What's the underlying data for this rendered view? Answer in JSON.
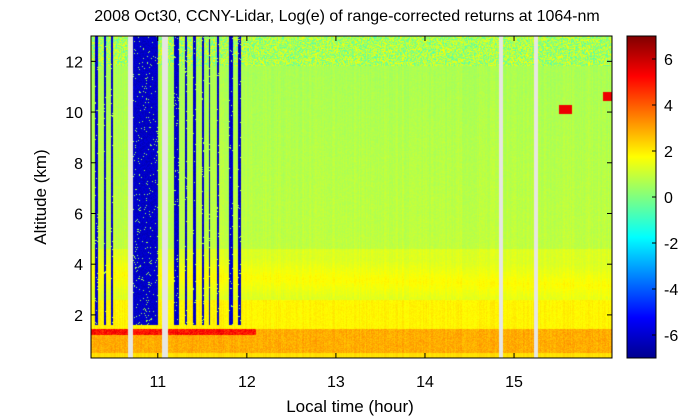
{
  "chart_data": {
    "type": "heatmap",
    "title": "2008 Oct30, CCNY-Lidar, Log(e) of range-corrected returns at 1064-nm",
    "xlabel": "Local time (hour)",
    "ylabel": "Altitude (km)",
    "xlim": [
      10.25,
      16.1
    ],
    "ylim": [
      0.3,
      13
    ],
    "x_ticks": [
      11,
      12,
      13,
      14,
      15
    ],
    "x_tick_labels": [
      "11",
      "12",
      "13",
      "14",
      "15"
    ],
    "y_ticks": [
      2,
      4,
      6,
      8,
      10,
      12
    ],
    "y_tick_labels": [
      "2",
      "4",
      "6",
      "8",
      "10",
      "12"
    ],
    "colorbar": {
      "range": [
        -7,
        7
      ],
      "ticks": [
        -6,
        -4,
        -2,
        0,
        2,
        4,
        6
      ],
      "tick_labels": [
        "-6",
        "-4",
        "-2",
        "0",
        "2",
        "4",
        "6"
      ],
      "colormap": "jet"
    },
    "data_gaps_hours": [
      [
        10.67,
        10.72
      ],
      [
        11.05,
        11.12
      ],
      [
        14.83,
        14.88
      ],
      [
        15.22,
        15.27
      ]
    ],
    "low_signal_columns_hours": [
      [
        10.3,
        10.33
      ],
      [
        10.4,
        10.42
      ],
      [
        10.48,
        10.5
      ],
      [
        10.72,
        11.0
      ],
      [
        11.18,
        11.24
      ],
      [
        11.3,
        11.33
      ],
      [
        11.4,
        11.43
      ],
      [
        11.5,
        11.52
      ],
      [
        11.57,
        11.59
      ],
      [
        11.67,
        11.69
      ],
      [
        11.8,
        11.84
      ],
      [
        11.9,
        11.93
      ]
    ],
    "layers": [
      {
        "feature": "boundary layer",
        "altitude_km": [
          0.3,
          1.4
        ],
        "value": 3.0
      },
      {
        "feature": "aerosol layer",
        "altitude_km": [
          3.0,
          4.6
        ],
        "value": 1.6
      },
      {
        "feature": "cloud",
        "x_hours": [
          15.5,
          15.65
        ],
        "altitude_km": 10.1,
        "value": 5.5
      },
      {
        "feature": "cloud",
        "x_hours": [
          16.0,
          16.1
        ],
        "altitude_km": 10.6,
        "value": 5.5
      }
    ],
    "grid": false
  }
}
